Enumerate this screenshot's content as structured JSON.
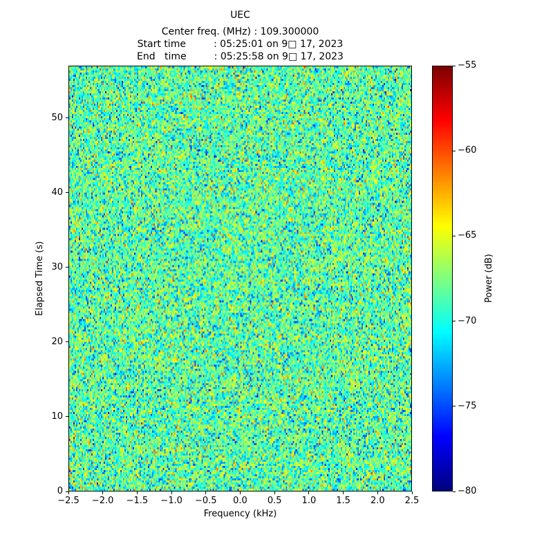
{
  "chart_data": {
    "type": "heatmap",
    "title": "UEC",
    "subtitle_lines": [
      "Center freq. (MHz) : 109.300000",
      "Start time         : 05:25:01 on 9□ 17, 2023",
      "End   time         : 05:25:58 on 9□ 17, 2023"
    ],
    "xlabel": "Frequency (kHz)",
    "ylabel": "Elapsed Time (s)",
    "xlim": [
      -2.5,
      2.5
    ],
    "ylim": [
      0,
      57
    ],
    "grid": false,
    "xticks": [
      {
        "value": -2.5,
        "label": "−2.5"
      },
      {
        "value": -2.0,
        "label": "−2.0"
      },
      {
        "value": -1.5,
        "label": "−1.5"
      },
      {
        "value": -1.0,
        "label": "−1.0"
      },
      {
        "value": -0.5,
        "label": "−0.5"
      },
      {
        "value": 0.0,
        "label": "0.0"
      },
      {
        "value": 0.5,
        "label": "0.5"
      },
      {
        "value": 1.0,
        "label": "1.0"
      },
      {
        "value": 1.5,
        "label": "1.5"
      },
      {
        "value": 2.0,
        "label": "2.0"
      },
      {
        "value": 2.5,
        "label": "2.5"
      }
    ],
    "yticks": [
      {
        "value": 0,
        "label": "0"
      },
      {
        "value": 10,
        "label": "10"
      },
      {
        "value": 20,
        "label": "20"
      },
      {
        "value": 30,
        "label": "30"
      },
      {
        "value": 40,
        "label": "40"
      },
      {
        "value": 50,
        "label": "50"
      }
    ],
    "colorbar": {
      "label": "Power (dB)",
      "colormap": "jet",
      "vmin": -80,
      "vmax": -55,
      "ticks": [
        {
          "value": -55,
          "label": "−55"
        },
        {
          "value": -60,
          "label": "−60"
        },
        {
          "value": -65,
          "label": "−65"
        },
        {
          "value": -70,
          "label": "−70"
        },
        {
          "value": -75,
          "label": "−75"
        },
        {
          "value": -80,
          "label": "−80"
        }
      ]
    },
    "noise": {
      "description": "featureless broadband noise floor; per-cell power values are random, mostly between about −76 and −61 dB (cyan/green with yellow speckles and occasional dark-blue dots), no visible signal structure",
      "mean_db": -68.5,
      "std_db": 3.0,
      "seed": 42,
      "cols": 248,
      "rows": 205
    }
  }
}
